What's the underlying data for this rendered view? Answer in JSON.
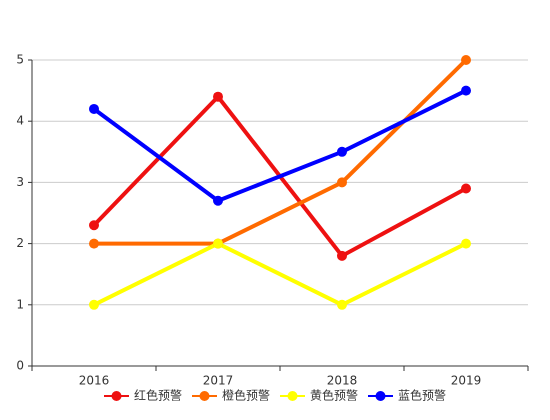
{
  "chart_data": {
    "type": "line",
    "categories": [
      "2016",
      "2017",
      "2018",
      "2019"
    ],
    "series": [
      {
        "name": "红色预警",
        "color": "#ee1111",
        "values": [
          2.3,
          4.4,
          1.8,
          2.9
        ]
      },
      {
        "name": "橙色预警",
        "color": "#ff6a00",
        "values": [
          2,
          2,
          3,
          5
        ]
      },
      {
        "name": "黄色预警",
        "color": "#ffff00",
        "values": [
          1,
          2,
          1,
          2
        ]
      },
      {
        "name": "蓝色预警",
        "color": "#0000ff",
        "values": [
          4.2,
          2.7,
          3.5,
          4.5
        ]
      }
    ],
    "ylim": [
      0,
      5
    ],
    "yticks": [
      0,
      1,
      2,
      3,
      4,
      5
    ],
    "grid": true,
    "legend": "bottom"
  }
}
